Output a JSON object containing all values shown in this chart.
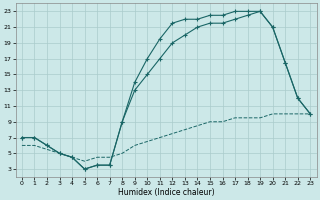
{
  "xlabel": "Humidex (Indice chaleur)",
  "bg_color": "#cce8e8",
  "grid_color": "#aacccc",
  "line_color": "#1a6666",
  "line1_x": [
    0,
    1,
    2,
    3,
    4,
    5,
    6,
    7,
    8,
    9,
    10,
    11,
    12,
    13,
    14,
    15,
    16,
    17,
    18,
    19,
    20,
    21,
    22,
    23
  ],
  "line1_y": [
    7,
    7,
    6,
    5,
    4.5,
    3,
    3.5,
    3.5,
    9,
    14,
    17,
    19.5,
    21.5,
    22,
    22,
    22.5,
    22.5,
    23,
    23,
    23,
    21,
    16.5,
    12,
    10
  ],
  "line2_x": [
    0,
    1,
    2,
    3,
    4,
    5,
    6,
    7,
    8,
    9,
    10,
    11,
    12,
    13,
    14,
    15,
    16,
    17,
    18,
    19,
    20,
    21,
    22,
    23
  ],
  "line2_y": [
    7,
    7,
    6,
    5,
    4.5,
    3,
    3.5,
    3.5,
    9,
    13,
    15,
    17,
    19,
    20,
    21,
    21.5,
    21.5,
    22,
    22.5,
    23,
    21,
    16.5,
    12,
    10
  ],
  "line3_x": [
    0,
    1,
    2,
    3,
    4,
    5,
    6,
    7,
    8,
    9,
    10,
    11,
    12,
    13,
    14,
    15,
    16,
    17,
    18,
    19,
    20,
    21,
    22,
    23
  ],
  "line3_y": [
    6,
    6,
    5.5,
    5,
    4.5,
    4,
    4.5,
    4.5,
    5,
    6,
    6.5,
    7,
    7.5,
    8,
    8.5,
    9,
    9,
    9.5,
    9.5,
    9.5,
    10,
    10,
    10,
    10
  ],
  "xlim": [
    -0.5,
    23.5
  ],
  "ylim": [
    2.0,
    24.0
  ],
  "yticks": [
    3,
    5,
    7,
    9,
    11,
    13,
    15,
    17,
    19,
    21,
    23
  ],
  "xticks": [
    0,
    1,
    2,
    3,
    4,
    5,
    6,
    7,
    8,
    9,
    10,
    11,
    12,
    13,
    14,
    15,
    16,
    17,
    18,
    19,
    20,
    21,
    22,
    23
  ],
  "xlabel_fontsize": 5.5,
  "tick_fontsize": 4.5,
  "linewidth": 0.8,
  "marker_size": 3.0
}
